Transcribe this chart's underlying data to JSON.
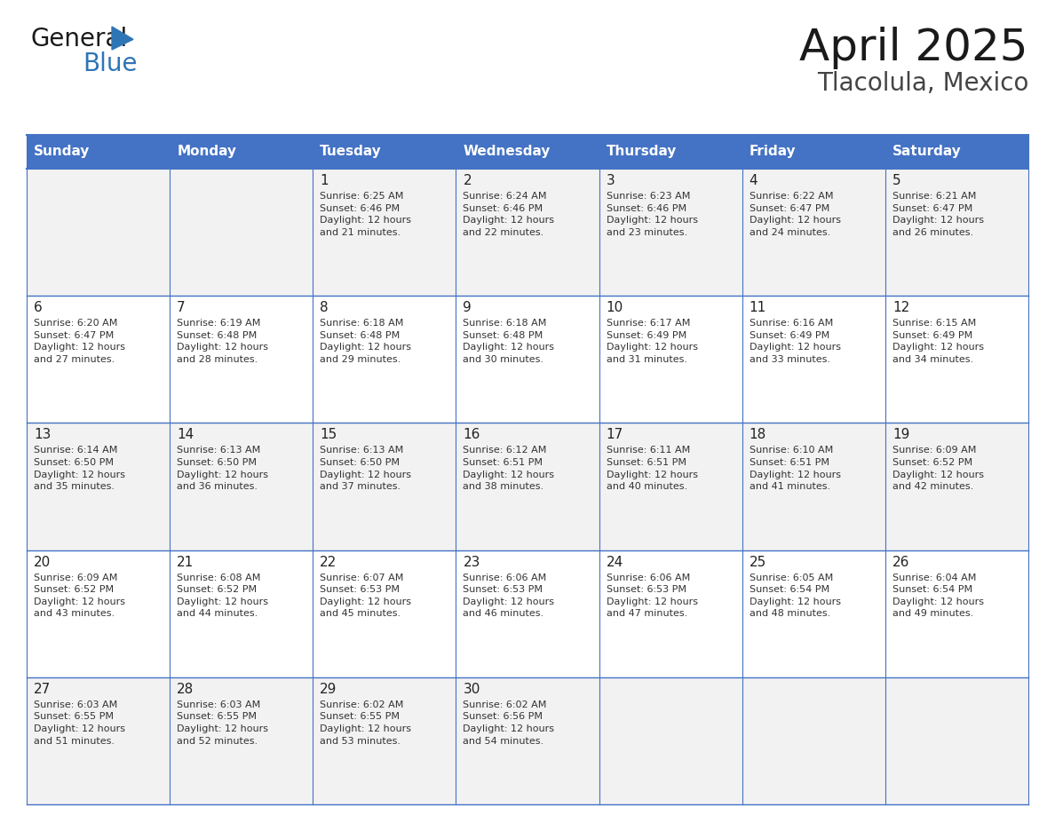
{
  "title": "April 2025",
  "subtitle": "Tlacolula, Mexico",
  "header_color": "#4472C4",
  "header_text_color": "#FFFFFF",
  "cell_bg_even": "#F2F2F2",
  "cell_bg_odd": "#FFFFFF",
  "border_color": "#4472C4",
  "text_color": "#333333",
  "days_of_week": [
    "Sunday",
    "Monday",
    "Tuesday",
    "Wednesday",
    "Thursday",
    "Friday",
    "Saturday"
  ],
  "weeks": [
    [
      {
        "day": "",
        "info": ""
      },
      {
        "day": "",
        "info": ""
      },
      {
        "day": "1",
        "info": "Sunrise: 6:25 AM\nSunset: 6:46 PM\nDaylight: 12 hours\nand 21 minutes."
      },
      {
        "day": "2",
        "info": "Sunrise: 6:24 AM\nSunset: 6:46 PM\nDaylight: 12 hours\nand 22 minutes."
      },
      {
        "day": "3",
        "info": "Sunrise: 6:23 AM\nSunset: 6:46 PM\nDaylight: 12 hours\nand 23 minutes."
      },
      {
        "day": "4",
        "info": "Sunrise: 6:22 AM\nSunset: 6:47 PM\nDaylight: 12 hours\nand 24 minutes."
      },
      {
        "day": "5",
        "info": "Sunrise: 6:21 AM\nSunset: 6:47 PM\nDaylight: 12 hours\nand 26 minutes."
      }
    ],
    [
      {
        "day": "6",
        "info": "Sunrise: 6:20 AM\nSunset: 6:47 PM\nDaylight: 12 hours\nand 27 minutes."
      },
      {
        "day": "7",
        "info": "Sunrise: 6:19 AM\nSunset: 6:48 PM\nDaylight: 12 hours\nand 28 minutes."
      },
      {
        "day": "8",
        "info": "Sunrise: 6:18 AM\nSunset: 6:48 PM\nDaylight: 12 hours\nand 29 minutes."
      },
      {
        "day": "9",
        "info": "Sunrise: 6:18 AM\nSunset: 6:48 PM\nDaylight: 12 hours\nand 30 minutes."
      },
      {
        "day": "10",
        "info": "Sunrise: 6:17 AM\nSunset: 6:49 PM\nDaylight: 12 hours\nand 31 minutes."
      },
      {
        "day": "11",
        "info": "Sunrise: 6:16 AM\nSunset: 6:49 PM\nDaylight: 12 hours\nand 33 minutes."
      },
      {
        "day": "12",
        "info": "Sunrise: 6:15 AM\nSunset: 6:49 PM\nDaylight: 12 hours\nand 34 minutes."
      }
    ],
    [
      {
        "day": "13",
        "info": "Sunrise: 6:14 AM\nSunset: 6:50 PM\nDaylight: 12 hours\nand 35 minutes."
      },
      {
        "day": "14",
        "info": "Sunrise: 6:13 AM\nSunset: 6:50 PM\nDaylight: 12 hours\nand 36 minutes."
      },
      {
        "day": "15",
        "info": "Sunrise: 6:13 AM\nSunset: 6:50 PM\nDaylight: 12 hours\nand 37 minutes."
      },
      {
        "day": "16",
        "info": "Sunrise: 6:12 AM\nSunset: 6:51 PM\nDaylight: 12 hours\nand 38 minutes."
      },
      {
        "day": "17",
        "info": "Sunrise: 6:11 AM\nSunset: 6:51 PM\nDaylight: 12 hours\nand 40 minutes."
      },
      {
        "day": "18",
        "info": "Sunrise: 6:10 AM\nSunset: 6:51 PM\nDaylight: 12 hours\nand 41 minutes."
      },
      {
        "day": "19",
        "info": "Sunrise: 6:09 AM\nSunset: 6:52 PM\nDaylight: 12 hours\nand 42 minutes."
      }
    ],
    [
      {
        "day": "20",
        "info": "Sunrise: 6:09 AM\nSunset: 6:52 PM\nDaylight: 12 hours\nand 43 minutes."
      },
      {
        "day": "21",
        "info": "Sunrise: 6:08 AM\nSunset: 6:52 PM\nDaylight: 12 hours\nand 44 minutes."
      },
      {
        "day": "22",
        "info": "Sunrise: 6:07 AM\nSunset: 6:53 PM\nDaylight: 12 hours\nand 45 minutes."
      },
      {
        "day": "23",
        "info": "Sunrise: 6:06 AM\nSunset: 6:53 PM\nDaylight: 12 hours\nand 46 minutes."
      },
      {
        "day": "24",
        "info": "Sunrise: 6:06 AM\nSunset: 6:53 PM\nDaylight: 12 hours\nand 47 minutes."
      },
      {
        "day": "25",
        "info": "Sunrise: 6:05 AM\nSunset: 6:54 PM\nDaylight: 12 hours\nand 48 minutes."
      },
      {
        "day": "26",
        "info": "Sunrise: 6:04 AM\nSunset: 6:54 PM\nDaylight: 12 hours\nand 49 minutes."
      }
    ],
    [
      {
        "day": "27",
        "info": "Sunrise: 6:03 AM\nSunset: 6:55 PM\nDaylight: 12 hours\nand 51 minutes."
      },
      {
        "day": "28",
        "info": "Sunrise: 6:03 AM\nSunset: 6:55 PM\nDaylight: 12 hours\nand 52 minutes."
      },
      {
        "day": "29",
        "info": "Sunrise: 6:02 AM\nSunset: 6:55 PM\nDaylight: 12 hours\nand 53 minutes."
      },
      {
        "day": "30",
        "info": "Sunrise: 6:02 AM\nSunset: 6:56 PM\nDaylight: 12 hours\nand 54 minutes."
      },
      {
        "day": "",
        "info": ""
      },
      {
        "day": "",
        "info": ""
      },
      {
        "day": "",
        "info": ""
      }
    ]
  ],
  "logo_general_color": "#1a1a1a",
  "logo_blue_color": "#2E75B6",
  "logo_triangle_color": "#2E75B6",
  "title_color": "#1a1a1a",
  "subtitle_color": "#444444",
  "title_fontsize": 36,
  "subtitle_fontsize": 20,
  "day_header_fontsize": 11,
  "day_num_fontsize": 11,
  "info_fontsize": 8
}
